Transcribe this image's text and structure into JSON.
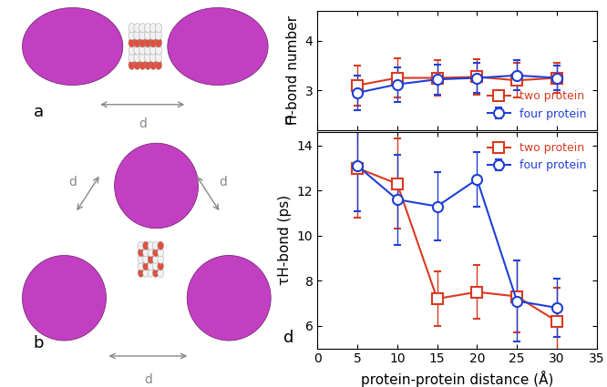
{
  "chart_data": [
    {
      "type": "line",
      "annotations": [
        "c"
      ],
      "ylabel": "H-bond number",
      "xlim": [
        0,
        35
      ],
      "xticks": [
        0,
        5,
        10,
        15,
        20,
        25,
        30,
        35
      ],
      "ylim": [
        2.2,
        4.6
      ],
      "yticks": [
        3,
        4
      ],
      "tick_labels": "y",
      "legend": "lower right",
      "x": [
        5,
        10,
        15,
        20,
        25,
        30
      ],
      "series": [
        {
          "name": "two protein",
          "color": "#d93a1f",
          "marker": "square",
          "values": [
            3.1,
            3.25,
            3.25,
            3.27,
            3.2,
            3.25
          ],
          "errors": [
            0.4,
            0.4,
            0.35,
            0.35,
            0.35,
            0.3
          ]
        },
        {
          "name": "four protein",
          "color": "#1f3fd6",
          "marker": "circle",
          "values": [
            2.95,
            3.12,
            3.22,
            3.25,
            3.3,
            3.25
          ],
          "errors": [
            0.35,
            0.35,
            0.3,
            0.3,
            0.3,
            0.25
          ]
        }
      ]
    },
    {
      "type": "line",
      "annotations": [
        "d"
      ],
      "ylabel": "τH-bond (ps)",
      "xlabel": "protein-protein distance (Å)",
      "xlim": [
        0,
        35
      ],
      "xticks": [
        0,
        5,
        10,
        15,
        20,
        25,
        30,
        35
      ],
      "ylim": [
        5,
        14.6
      ],
      "yticks": [
        6,
        8,
        10,
        12,
        14
      ],
      "legend": "upper right",
      "x": [
        5,
        10,
        15,
        20,
        25,
        30
      ],
      "series": [
        {
          "name": "two protein",
          "color": "#d93a1f",
          "marker": "square",
          "values": [
            13.0,
            12.3,
            7.2,
            7.5,
            7.3,
            6.2
          ],
          "errors": [
            2.2,
            2.0,
            1.2,
            1.2,
            1.6,
            1.5
          ]
        },
        {
          "name": "four protein",
          "color": "#1f3fd6",
          "marker": "circle",
          "values": [
            13.1,
            11.6,
            11.3,
            12.5,
            7.1,
            6.8
          ],
          "errors": [
            2.0,
            2.0,
            1.5,
            1.2,
            1.8,
            1.3
          ]
        }
      ]
    }
  ],
  "diagram": {
    "panels": [
      {
        "label": "a",
        "distance_labels": [
          "d"
        ]
      },
      {
        "label": "b",
        "distance_labels": [
          "d",
          "d",
          "d"
        ]
      }
    ]
  }
}
